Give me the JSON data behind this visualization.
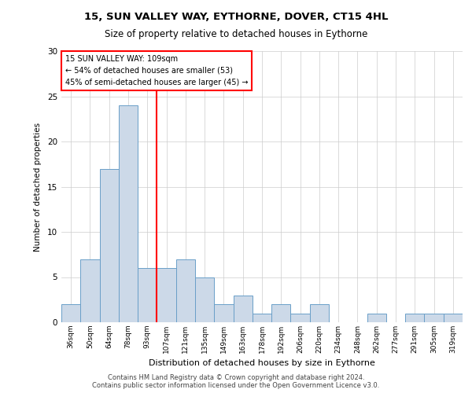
{
  "title1": "15, SUN VALLEY WAY, EYTHORNE, DOVER, CT15 4HL",
  "title2": "Size of property relative to detached houses in Eythorne",
  "xlabel": "Distribution of detached houses by size in Eythorne",
  "ylabel": "Number of detached properties",
  "footer1": "Contains HM Land Registry data © Crown copyright and database right 2024.",
  "footer2": "Contains public sector information licensed under the Open Government Licence v3.0.",
  "annotation_line1": "15 SUN VALLEY WAY: 109sqm",
  "annotation_line2": "← 54% of detached houses are smaller (53)",
  "annotation_line3": "45% of semi-detached houses are larger (45) →",
  "bar_labels": [
    "36sqm",
    "50sqm",
    "64sqm",
    "78sqm",
    "93sqm",
    "107sqm",
    "121sqm",
    "135sqm",
    "149sqm",
    "163sqm",
    "178sqm",
    "192sqm",
    "206sqm",
    "220sqm",
    "234sqm",
    "248sqm",
    "262sqm",
    "277sqm",
    "291sqm",
    "305sqm",
    "319sqm"
  ],
  "bar_values": [
    2,
    7,
    17,
    24,
    6,
    6,
    7,
    5,
    2,
    3,
    1,
    2,
    1,
    2,
    0,
    0,
    1,
    0,
    1,
    1,
    1
  ],
  "bar_color": "#ccd9e8",
  "bar_edge_color": "#6a9fc8",
  "red_line_x": 4.5,
  "ylim": [
    0,
    30
  ],
  "yticks": [
    0,
    5,
    10,
    15,
    20,
    25,
    30
  ],
  "background_color": "#ffffff",
  "grid_color": "#cccccc"
}
